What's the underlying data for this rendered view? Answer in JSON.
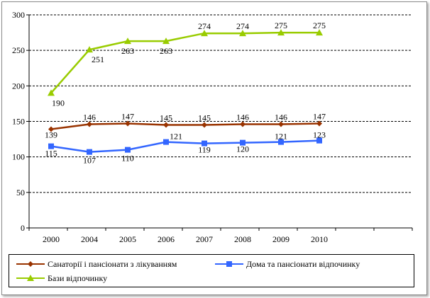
{
  "chart_data": {
    "type": "line",
    "categories": [
      "2000",
      "2004",
      "2005",
      "2006",
      "2007",
      "2008",
      "2009",
      "2010"
    ],
    "ylim": [
      0,
      300
    ],
    "yticks": [
      "0",
      "50",
      "100",
      "150",
      "200",
      "250",
      "300"
    ],
    "grid": true,
    "legend_position": "bottom",
    "series": [
      {
        "name": "Санаторії і пансіонати з лікуванням",
        "values": [
          139,
          146,
          147,
          145,
          145,
          146,
          146,
          147
        ],
        "color": "#993300",
        "marker": "diamond"
      },
      {
        "name": "Дома та пансіонати відпочинку",
        "values": [
          115,
          107,
          110,
          121,
          119,
          120,
          121,
          123
        ],
        "color": "#3366ff",
        "marker": "square"
      },
      {
        "name": "Бази відпочинку",
        "values": [
          190,
          251,
          263,
          263,
          274,
          274,
          275,
          275
        ],
        "color": "#99cc00",
        "marker": "triangle"
      }
    ]
  }
}
